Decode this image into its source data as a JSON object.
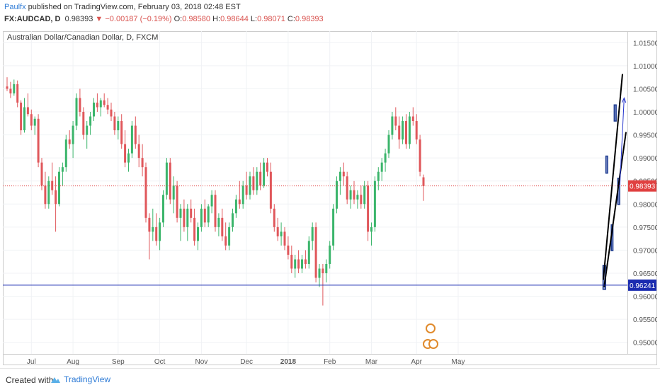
{
  "header": {
    "author": "Paulfx",
    "published": "published on TradingView.com, February 03, 2018 02:48 EST",
    "symbol": "FX:AUDCAD, D",
    "last": "0.98393",
    "change_arrow": "▼",
    "change": "−0.00187 (−0.19%)",
    "open_label": "O:",
    "open": "0.98580",
    "high_label": "H:",
    "high": "0.98644",
    "low_label": "L:",
    "low": "0.98071",
    "close_label": "C:",
    "close": "0.98393"
  },
  "chart_data": {
    "type": "candlestick",
    "title": "Australian Dollar/Canadian Dollar, D, FXCM",
    "y_ticks": [
      "1.01500",
      "1.01000",
      "1.00500",
      "1.00000",
      "0.99500",
      "0.99000",
      "0.98500",
      "0.98000",
      "0.97500",
      "0.97000",
      "0.96500",
      "0.96000",
      "0.95500",
      "0.95000"
    ],
    "ylim": [
      0.9475,
      1.0175
    ],
    "x_ticks": [
      "Jul",
      "Aug",
      "Sep",
      "Oct",
      "Nov",
      "Dec",
      "2018",
      "Feb",
      "Mar",
      "Apr",
      "May"
    ],
    "current_price": {
      "value": 0.98393,
      "label": "0.98393",
      "color": "#e04040"
    },
    "horizontal_line": {
      "value": 0.96241,
      "label": "0.96241",
      "color": "#1a2bb0"
    },
    "channel_upper": [
      [
        0.9635,
        0.9636
      ],
      [
        0.9943,
        1.0082
      ]
    ],
    "channel_lower": [
      [
        0.9648,
        0.962
      ],
      [
        1.0,
        0.9956
      ]
    ],
    "arrow": {
      "from": [
        0.99,
        0.9839
      ],
      "to": [
        0.997,
        1.003
      ],
      "color": "#2233cc"
    },
    "boxes": [
      {
        "x0": 0.963,
        "x1": 0.9672,
        "y0": 0.9615,
        "y1": 0.9667
      },
      {
        "x0": 0.9676,
        "x1": 0.9704,
        "y0": 0.9867,
        "y1": 0.9904
      },
      {
        "x0": 0.9763,
        "x1": 0.979,
        "y0": 0.9699,
        "y1": 0.9755
      },
      {
        "x0": 0.981,
        "x1": 0.9842,
        "y0": 0.998,
        "y1": 1.0015
      },
      {
        "x0": 0.9868,
        "x1": 0.9898,
        "y0": 0.9799,
        "y1": 0.9856
      }
    ],
    "candles": [
      {
        "o": 1.0055,
        "h": 1.0075,
        "l": 1.0045,
        "c": 1.005
      },
      {
        "o": 1.005,
        "h": 1.0065,
        "l": 1.003,
        "c": 1.004
      },
      {
        "o": 1.004,
        "h": 1.007,
        "l": 1.0035,
        "c": 1.006
      },
      {
        "o": 1.006,
        "h": 1.0068,
        "l": 1.001,
        "c": 1.002
      },
      {
        "o": 1.002,
        "h": 1.0025,
        "l": 0.995,
        "c": 0.996
      },
      {
        "o": 0.996,
        "h": 1.003,
        "l": 0.9955,
        "c": 1.001
      },
      {
        "o": 1.001,
        "h": 1.004,
        "l": 0.999,
        "c": 0.9995
      },
      {
        "o": 0.9995,
        "h": 1.0005,
        "l": 0.996,
        "c": 0.997
      },
      {
        "o": 0.997,
        "h": 0.999,
        "l": 0.995,
        "c": 0.9985
      },
      {
        "o": 0.9985,
        "h": 0.9995,
        "l": 0.988,
        "c": 0.989
      },
      {
        "o": 0.989,
        "h": 0.99,
        "l": 0.983,
        "c": 0.984
      },
      {
        "o": 0.984,
        "h": 0.987,
        "l": 0.979,
        "c": 0.98
      },
      {
        "o": 0.98,
        "h": 0.986,
        "l": 0.979,
        "c": 0.985
      },
      {
        "o": 0.985,
        "h": 0.989,
        "l": 0.982,
        "c": 0.983
      },
      {
        "o": 0.983,
        "h": 0.986,
        "l": 0.974,
        "c": 0.98
      },
      {
        "o": 0.98,
        "h": 0.988,
        "l": 0.9795,
        "c": 0.987
      },
      {
        "o": 0.987,
        "h": 0.989,
        "l": 0.984,
        "c": 0.988
      },
      {
        "o": 0.988,
        "h": 0.995,
        "l": 0.987,
        "c": 0.994
      },
      {
        "o": 0.994,
        "h": 0.996,
        "l": 0.992,
        "c": 0.993
      },
      {
        "o": 0.993,
        "h": 0.998,
        "l": 0.99,
        "c": 0.997
      },
      {
        "o": 0.997,
        "h": 1.004,
        "l": 0.996,
        "c": 1.003
      },
      {
        "o": 1.003,
        "h": 1.005,
        "l": 0.999,
        "c": 1.0
      },
      {
        "o": 1.0,
        "h": 1.001,
        "l": 0.994,
        "c": 0.995
      },
      {
        "o": 0.995,
        "h": 0.998,
        "l": 0.992,
        "c": 0.997
      },
      {
        "o": 0.997,
        "h": 1.0,
        "l": 0.995,
        "c": 0.999
      },
      {
        "o": 0.999,
        "h": 1.003,
        "l": 0.998,
        "c": 1.002
      },
      {
        "o": 1.002,
        "h": 1.004,
        "l": 1.0,
        "c": 1.001
      },
      {
        "o": 1.001,
        "h": 1.003,
        "l": 0.999,
        "c": 1.0025
      },
      {
        "o": 1.0025,
        "h": 1.004,
        "l": 1.001,
        "c": 1.0015
      },
      {
        "o": 1.0015,
        "h": 1.003,
        "l": 0.9995,
        "c": 1.0005
      },
      {
        "o": 1.0005,
        "h": 1.002,
        "l": 0.998,
        "c": 0.999
      },
      {
        "o": 0.999,
        "h": 1.0,
        "l": 0.995,
        "c": 0.996
      },
      {
        "o": 0.996,
        "h": 0.999,
        "l": 0.994,
        "c": 0.998
      },
      {
        "o": 0.998,
        "h": 0.9995,
        "l": 0.992,
        "c": 0.993
      },
      {
        "o": 0.993,
        "h": 0.996,
        "l": 0.988,
        "c": 0.989
      },
      {
        "o": 0.989,
        "h": 0.992,
        "l": 0.987,
        "c": 0.991
      },
      {
        "o": 0.991,
        "h": 0.998,
        "l": 0.99,
        "c": 0.997
      },
      {
        "o": 0.997,
        "h": 0.999,
        "l": 0.992,
        "c": 0.993
      },
      {
        "o": 0.993,
        "h": 0.995,
        "l": 0.988,
        "c": 0.99
      },
      {
        "o": 0.99,
        "h": 0.993,
        "l": 0.986,
        "c": 0.988
      },
      {
        "o": 0.988,
        "h": 0.989,
        "l": 0.976,
        "c": 0.977
      },
      {
        "o": 0.977,
        "h": 0.978,
        "l": 0.968,
        "c": 0.974
      },
      {
        "o": 0.974,
        "h": 0.979,
        "l": 0.972,
        "c": 0.975
      },
      {
        "o": 0.975,
        "h": 0.978,
        "l": 0.971,
        "c": 0.972
      },
      {
        "o": 0.972,
        "h": 0.977,
        "l": 0.97,
        "c": 0.976
      },
      {
        "o": 0.976,
        "h": 0.983,
        "l": 0.975,
        "c": 0.982
      },
      {
        "o": 0.982,
        "h": 0.99,
        "l": 0.981,
        "c": 0.989
      },
      {
        "o": 0.989,
        "h": 0.99,
        "l": 0.98,
        "c": 0.981
      },
      {
        "o": 0.981,
        "h": 0.986,
        "l": 0.978,
        "c": 0.984
      },
      {
        "o": 0.984,
        "h": 0.985,
        "l": 0.976,
        "c": 0.977
      },
      {
        "o": 0.977,
        "h": 0.98,
        "l": 0.972,
        "c": 0.979
      },
      {
        "o": 0.979,
        "h": 0.981,
        "l": 0.974,
        "c": 0.975
      },
      {
        "o": 0.975,
        "h": 0.98,
        "l": 0.972,
        "c": 0.979
      },
      {
        "o": 0.979,
        "h": 0.981,
        "l": 0.976,
        "c": 0.977
      },
      {
        "o": 0.977,
        "h": 0.979,
        "l": 0.971,
        "c": 0.972
      },
      {
        "o": 0.972,
        "h": 0.976,
        "l": 0.97,
        "c": 0.975
      },
      {
        "o": 0.975,
        "h": 0.98,
        "l": 0.974,
        "c": 0.979
      },
      {
        "o": 0.979,
        "h": 0.981,
        "l": 0.975,
        "c": 0.976
      },
      {
        "o": 0.976,
        "h": 0.98,
        "l": 0.975,
        "c": 0.9795
      },
      {
        "o": 0.9795,
        "h": 0.983,
        "l": 0.978,
        "c": 0.982
      },
      {
        "o": 0.982,
        "h": 0.983,
        "l": 0.974,
        "c": 0.975
      },
      {
        "o": 0.975,
        "h": 0.978,
        "l": 0.973,
        "c": 0.977
      },
      {
        "o": 0.977,
        "h": 0.979,
        "l": 0.972,
        "c": 0.973
      },
      {
        "o": 0.973,
        "h": 0.976,
        "l": 0.97,
        "c": 0.971
      },
      {
        "o": 0.971,
        "h": 0.976,
        "l": 0.97,
        "c": 0.975
      },
      {
        "o": 0.975,
        "h": 0.979,
        "l": 0.974,
        "c": 0.978
      },
      {
        "o": 0.978,
        "h": 0.982,
        "l": 0.977,
        "c": 0.981
      },
      {
        "o": 0.981,
        "h": 0.985,
        "l": 0.979,
        "c": 0.98
      },
      {
        "o": 0.98,
        "h": 0.985,
        "l": 0.979,
        "c": 0.984
      },
      {
        "o": 0.984,
        "h": 0.987,
        "l": 0.981,
        "c": 0.982
      },
      {
        "o": 0.982,
        "h": 0.987,
        "l": 0.981,
        "c": 0.986
      },
      {
        "o": 0.986,
        "h": 0.988,
        "l": 0.982,
        "c": 0.983
      },
      {
        "o": 0.983,
        "h": 0.988,
        "l": 0.982,
        "c": 0.987
      },
      {
        "o": 0.987,
        "h": 0.989,
        "l": 0.983,
        "c": 0.984
      },
      {
        "o": 0.984,
        "h": 0.99,
        "l": 0.9835,
        "c": 0.989
      },
      {
        "o": 0.989,
        "h": 0.99,
        "l": 0.986,
        "c": 0.987
      },
      {
        "o": 0.987,
        "h": 0.989,
        "l": 0.978,
        "c": 0.979
      },
      {
        "o": 0.979,
        "h": 0.98,
        "l": 0.974,
        "c": 0.975
      },
      {
        "o": 0.975,
        "h": 0.977,
        "l": 0.972,
        "c": 0.973
      },
      {
        "o": 0.973,
        "h": 0.976,
        "l": 0.971,
        "c": 0.974
      },
      {
        "o": 0.974,
        "h": 0.975,
        "l": 0.97,
        "c": 0.971
      },
      {
        "o": 0.971,
        "h": 0.973,
        "l": 0.968,
        "c": 0.969
      },
      {
        "o": 0.969,
        "h": 0.971,
        "l": 0.965,
        "c": 0.966
      },
      {
        "o": 0.966,
        "h": 0.969,
        "l": 0.964,
        "c": 0.968
      },
      {
        "o": 0.968,
        "h": 0.97,
        "l": 0.965,
        "c": 0.966
      },
      {
        "o": 0.966,
        "h": 0.969,
        "l": 0.965,
        "c": 0.968
      },
      {
        "o": 0.968,
        "h": 0.97,
        "l": 0.966,
        "c": 0.967
      },
      {
        "o": 0.967,
        "h": 0.973,
        "l": 0.966,
        "c": 0.972
      },
      {
        "o": 0.972,
        "h": 0.976,
        "l": 0.97,
        "c": 0.975
      },
      {
        "o": 0.975,
        "h": 0.976,
        "l": 0.963,
        "c": 0.964
      },
      {
        "o": 0.964,
        "h": 0.967,
        "l": 0.962,
        "c": 0.966
      },
      {
        "o": 0.966,
        "h": 0.967,
        "l": 0.958,
        "c": 0.965
      },
      {
        "o": 0.965,
        "h": 0.968,
        "l": 0.963,
        "c": 0.967
      },
      {
        "o": 0.967,
        "h": 0.972,
        "l": 0.966,
        "c": 0.971
      },
      {
        "o": 0.971,
        "h": 0.98,
        "l": 0.97,
        "c": 0.979
      },
      {
        "o": 0.979,
        "h": 0.986,
        "l": 0.978,
        "c": 0.985
      },
      {
        "o": 0.985,
        "h": 0.988,
        "l": 0.982,
        "c": 0.987
      },
      {
        "o": 0.987,
        "h": 0.989,
        "l": 0.984,
        "c": 0.986
      },
      {
        "o": 0.986,
        "h": 0.987,
        "l": 0.98,
        "c": 0.981
      },
      {
        "o": 0.981,
        "h": 0.984,
        "l": 0.979,
        "c": 0.983
      },
      {
        "o": 0.983,
        "h": 0.985,
        "l": 0.98,
        "c": 0.981
      },
      {
        "o": 0.981,
        "h": 0.983,
        "l": 0.979,
        "c": 0.982
      },
      {
        "o": 0.982,
        "h": 0.984,
        "l": 0.979,
        "c": 0.98
      },
      {
        "o": 0.98,
        "h": 0.985,
        "l": 0.979,
        "c": 0.984
      },
      {
        "o": 0.984,
        "h": 0.985,
        "l": 0.972,
        "c": 0.974
      },
      {
        "o": 0.974,
        "h": 0.976,
        "l": 0.971,
        "c": 0.975
      },
      {
        "o": 0.975,
        "h": 0.986,
        "l": 0.974,
        "c": 0.985
      },
      {
        "o": 0.985,
        "h": 0.988,
        "l": 0.983,
        "c": 0.987
      },
      {
        "o": 0.987,
        "h": 0.99,
        "l": 0.985,
        "c": 0.989
      },
      {
        "o": 0.989,
        "h": 0.992,
        "l": 0.987,
        "c": 0.991
      },
      {
        "o": 0.991,
        "h": 0.996,
        "l": 0.99,
        "c": 0.995
      },
      {
        "o": 0.995,
        "h": 1.0,
        "l": 0.994,
        "c": 0.999
      },
      {
        "o": 0.999,
        "h": 1.001,
        "l": 0.996,
        "c": 0.997
      },
      {
        "o": 0.997,
        "h": 0.999,
        "l": 0.992,
        "c": 0.994
      },
      {
        "o": 0.994,
        "h": 0.999,
        "l": 0.993,
        "c": 0.998
      },
      {
        "o": 0.998,
        "h": 0.9995,
        "l": 0.992,
        "c": 0.993
      },
      {
        "o": 0.993,
        "h": 1.0,
        "l": 0.992,
        "c": 0.999
      },
      {
        "o": 0.999,
        "h": 1.001,
        "l": 0.997,
        "c": 0.998
      },
      {
        "o": 0.998,
        "h": 0.9995,
        "l": 0.993,
        "c": 0.994
      },
      {
        "o": 0.994,
        "h": 0.995,
        "l": 0.986,
        "c": 0.987
      },
      {
        "o": 0.9858,
        "h": 0.9864,
        "l": 0.9807,
        "c": 0.9839
      }
    ]
  },
  "footer": {
    "created_with": "Created with",
    "brand": "TradingView"
  }
}
